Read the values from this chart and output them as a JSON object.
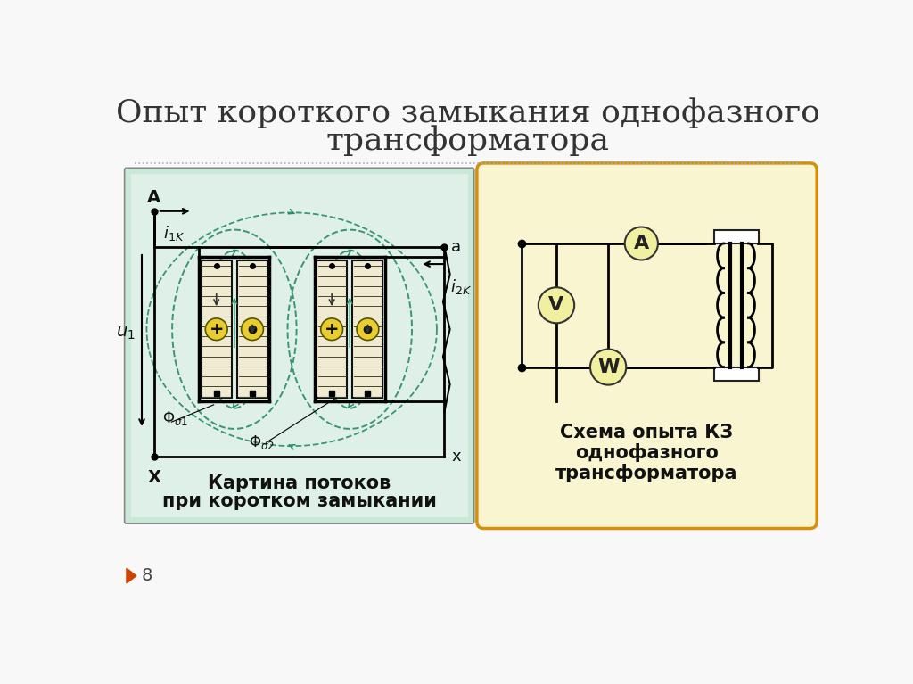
{
  "title_line1": "Опыт короткого замыкания однофазного",
  "title_line2": "трансформатора",
  "title_fontsize": 26,
  "bg_color": "#f8f8f8",
  "left_panel_bg": "#c8e8d8",
  "right_panel_bg": "#f8f5d0",
  "right_panel_border": "#d4900a",
  "left_caption_line1": "Картина потоков",
  "left_caption_line2": "при коротком замыкании",
  "right_caption_line1": "Схема опыта КЗ",
  "right_caption_line2": "однофазного",
  "right_caption_line3": "трансформатора",
  "page_number": "8",
  "flux_color": "#2a8a6a"
}
